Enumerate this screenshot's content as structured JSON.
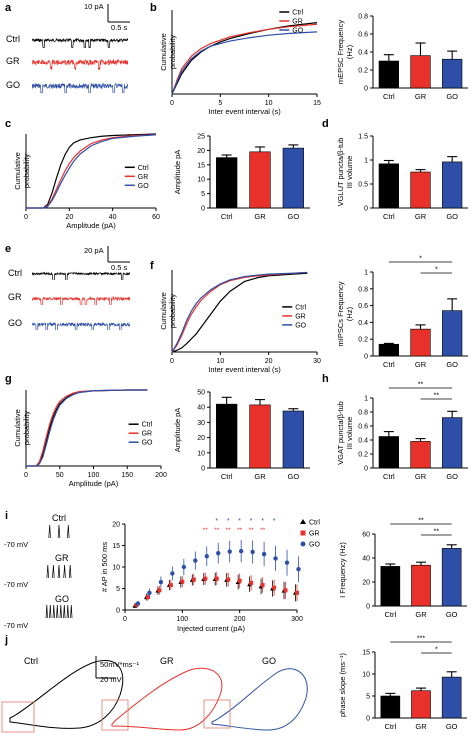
{
  "colors": {
    "ctrl": "#000000",
    "gr": "#e8312b",
    "go": "#2e4fa8"
  },
  "panels": {
    "a": {
      "label": "a",
      "scale_pa": "10 pA",
      "scale_s": "0.5 s",
      "traces": [
        "Ctrl",
        "GR",
        "GO"
      ]
    },
    "e": {
      "label": "e",
      "scale_pa": "20 pA",
      "scale_s": "0.5 s",
      "traces": [
        "Ctrl",
        "GR",
        "GO"
      ]
    },
    "i_traces": {
      "label": "i",
      "rows": [
        {
          "name": "Ctrl",
          "vm": "-70 mV",
          "spikes": 3
        },
        {
          "name": "GR",
          "vm": "-70 mV",
          "spikes": 5
        },
        {
          "name": "GO",
          "vm": "-70 mV",
          "spikes": 8
        }
      ]
    },
    "j": {
      "label": "j",
      "names": [
        "Ctrl",
        "GR",
        "GO"
      ],
      "scale_y": "50mV*ms⁻¹",
      "scale_x": "20 mV"
    }
  },
  "chart_data": [
    {
      "id": "b_cum",
      "label": "b",
      "type": "line",
      "xlabel": "Inter event interval (s)",
      "ylabel": "Cumulative probability",
      "xlim": [
        0,
        15
      ],
      "xticks": [
        0,
        5,
        10,
        15
      ],
      "ylim": [
        0,
        1.0
      ],
      "legend": [
        "Ctrl",
        "GR",
        "GO"
      ],
      "legend_position": "top-right",
      "series": [
        {
          "name": "Ctrl",
          "x": [
            0,
            0.5,
            1,
            2,
            3,
            4,
            5,
            6,
            8,
            10,
            12,
            15
          ],
          "y": [
            0,
            0.12,
            0.24,
            0.4,
            0.5,
            0.57,
            0.62,
            0.66,
            0.72,
            0.77,
            0.81,
            0.85
          ]
        },
        {
          "name": "GR",
          "x": [
            0,
            0.5,
            1,
            2,
            3,
            4,
            5,
            6,
            8,
            10,
            12,
            15
          ],
          "y": [
            0,
            0.16,
            0.3,
            0.45,
            0.54,
            0.6,
            0.64,
            0.68,
            0.73,
            0.77,
            0.8,
            0.83
          ]
        },
        {
          "name": "GO",
          "x": [
            0,
            0.5,
            1,
            2,
            3,
            4,
            5,
            6,
            8,
            10,
            12,
            15
          ],
          "y": [
            0,
            0.14,
            0.27,
            0.42,
            0.51,
            0.57,
            0.6,
            0.63,
            0.67,
            0.7,
            0.72,
            0.74
          ]
        }
      ]
    },
    {
      "id": "b_bar",
      "type": "bar",
      "ylabel": "mEPSC Frequency (Hz)",
      "categories": [
        "Ctrl",
        "GR",
        "GO"
      ],
      "values": [
        0.3,
        0.36,
        0.32
      ],
      "errors": [
        0.07,
        0.14,
        0.09
      ],
      "ylim": [
        0,
        0.8
      ],
      "yticks": [
        0.0,
        0.2,
        0.4,
        0.6,
        0.8
      ]
    },
    {
      "id": "c_cum",
      "label": "c",
      "type": "line",
      "xlabel": "Amplitude (pA)",
      "ylabel": "Cumulative probability",
      "xlim": [
        0,
        60
      ],
      "xticks": [
        0,
        20,
        40,
        60
      ],
      "ylim": [
        0,
        1.0
      ],
      "legend": [
        "Ctrl",
        "GR",
        "GO"
      ],
      "legend_position": "right",
      "series": [
        {
          "name": "Ctrl",
          "x": [
            0,
            8,
            10,
            12,
            14,
            16,
            18,
            20,
            22,
            25,
            30,
            35,
            40,
            50,
            60
          ],
          "y": [
            0,
            0,
            0.05,
            0.2,
            0.4,
            0.58,
            0.72,
            0.82,
            0.88,
            0.92,
            0.95,
            0.97,
            0.98,
            0.99,
            1.0
          ]
        },
        {
          "name": "GR",
          "x": [
            0,
            8,
            10,
            12,
            14,
            16,
            18,
            20,
            22,
            25,
            30,
            35,
            40,
            50,
            60
          ],
          "y": [
            0,
            0,
            0.03,
            0.12,
            0.25,
            0.38,
            0.5,
            0.6,
            0.68,
            0.77,
            0.87,
            0.92,
            0.95,
            0.98,
            0.99
          ]
        },
        {
          "name": "GO",
          "x": [
            0,
            8,
            10,
            12,
            14,
            16,
            18,
            20,
            22,
            25,
            30,
            35,
            40,
            50,
            60
          ],
          "y": [
            0,
            0,
            0.02,
            0.1,
            0.21,
            0.33,
            0.44,
            0.54,
            0.63,
            0.73,
            0.84,
            0.9,
            0.94,
            0.97,
            0.99
          ]
        }
      ]
    },
    {
      "id": "c_bar",
      "type": "bar",
      "ylabel": "Amplitude pA",
      "categories": [
        "Ctrl",
        "GR",
        "GO"
      ],
      "values": [
        17.5,
        19.5,
        20.8
      ],
      "errors": [
        0.9,
        1.7,
        1.1
      ],
      "ylim": [
        0,
        25
      ],
      "yticks": [
        0,
        5,
        10,
        15,
        20,
        25
      ]
    },
    {
      "id": "d_bar",
      "label": "d",
      "type": "bar",
      "ylabel": "VGLUT puncta/β-tub III volume",
      "categories": [
        "Ctrl",
        "GR",
        "GO"
      ],
      "values": [
        0.92,
        0.75,
        0.96
      ],
      "errors": [
        0.07,
        0.05,
        0.11
      ],
      "ylim": [
        0,
        1.5
      ],
      "yticks": [
        0.0,
        0.5,
        1.0,
        1.5
      ]
    },
    {
      "id": "f_cum",
      "label": "f",
      "type": "line",
      "xlabel": "Inter event interval (s)",
      "ylabel": "Cumulative probability",
      "xlim": [
        0,
        30
      ],
      "xticks": [
        0,
        10,
        20,
        30
      ],
      "ylim": [
        0,
        1.0
      ],
      "legend": [
        "Ctrl",
        "GR",
        "GO"
      ],
      "legend_position": "right",
      "series": [
        {
          "name": "Ctrl",
          "x": [
            0,
            1,
            2,
            3,
            4,
            5,
            6,
            8,
            10,
            12,
            15,
            18,
            20,
            25,
            28
          ],
          "y": [
            0,
            0.02,
            0.05,
            0.1,
            0.16,
            0.22,
            0.3,
            0.46,
            0.62,
            0.74,
            0.86,
            0.91,
            0.93,
            0.95,
            0.96
          ]
        },
        {
          "name": "GR",
          "x": [
            0,
            1,
            2,
            3,
            4,
            5,
            6,
            8,
            10,
            12,
            15,
            18,
            20,
            25,
            28
          ],
          "y": [
            0,
            0.08,
            0.2,
            0.34,
            0.46,
            0.55,
            0.63,
            0.74,
            0.82,
            0.87,
            0.91,
            0.93,
            0.94,
            0.96,
            0.97
          ]
        },
        {
          "name": "GO",
          "x": [
            0,
            1,
            2,
            3,
            4,
            5,
            6,
            8,
            10,
            12,
            15,
            18,
            20,
            25,
            28
          ],
          "y": [
            0,
            0.1,
            0.23,
            0.38,
            0.5,
            0.59,
            0.66,
            0.76,
            0.83,
            0.88,
            0.92,
            0.94,
            0.95,
            0.96,
            0.97
          ]
        }
      ]
    },
    {
      "id": "f_bar",
      "type": "bar",
      "ylabel": "mIPSCs Frequency (Hz)",
      "categories": [
        "Ctrl",
        "GR",
        "GO"
      ],
      "values": [
        0.14,
        0.32,
        0.54
      ],
      "errors": [
        0.01,
        0.05,
        0.14
      ],
      "ylim": [
        0,
        1.0
      ],
      "yticks": [
        0.0,
        0.2,
        0.4,
        0.6,
        0.8,
        1.0
      ],
      "significance": [
        {
          "a": 0,
          "b": 2,
          "text": "*"
        },
        {
          "a": 1,
          "b": 2,
          "text": "*"
        }
      ]
    },
    {
      "id": "g_cum",
      "label": "g",
      "type": "line",
      "xlabel": "Amplitude (pA)",
      "ylabel": "Cumulative probability",
      "xlim": [
        0,
        200
      ],
      "xticks": [
        0,
        50,
        100,
        150,
        200
      ],
      "ylim": [
        0,
        1.0
      ],
      "legend": [
        "Ctrl",
        "GR",
        "GO"
      ],
      "legend_position": "right",
      "series": [
        {
          "name": "Ctrl",
          "x": [
            0,
            15,
            20,
            25,
            30,
            35,
            40,
            45,
            50,
            60,
            70,
            80,
            100,
            150,
            180
          ],
          "y": [
            0,
            0,
            0.04,
            0.15,
            0.32,
            0.5,
            0.64,
            0.74,
            0.82,
            0.9,
            0.95,
            0.97,
            0.99,
            1.0,
            1.0
          ]
        },
        {
          "name": "GR",
          "x": [
            0,
            15,
            20,
            25,
            30,
            35,
            40,
            45,
            50,
            60,
            70,
            80,
            100,
            150,
            180
          ],
          "y": [
            0,
            0,
            0.06,
            0.2,
            0.38,
            0.55,
            0.68,
            0.78,
            0.85,
            0.92,
            0.96,
            0.98,
            0.99,
            1.0,
            1.0
          ]
        },
        {
          "name": "GO",
          "x": [
            0,
            15,
            20,
            25,
            30,
            35,
            40,
            45,
            50,
            60,
            70,
            80,
            100,
            150,
            180
          ],
          "y": [
            0,
            0,
            0.03,
            0.12,
            0.28,
            0.45,
            0.6,
            0.71,
            0.8,
            0.89,
            0.94,
            0.97,
            0.99,
            1.0,
            1.0
          ]
        }
      ]
    },
    {
      "id": "g_bar",
      "type": "bar",
      "ylabel": "Amplitude pA",
      "categories": [
        "Ctrl",
        "GR",
        "GO"
      ],
      "values": [
        42,
        41.5,
        37.5
      ],
      "errors": [
        4.5,
        3.5,
        1.5
      ],
      "ylim": [
        0,
        50
      ],
      "yticks": [
        0,
        10,
        20,
        30,
        40,
        50
      ]
    },
    {
      "id": "h_bar",
      "label": "h",
      "type": "bar",
      "ylabel": "VGAT puncta/β-tub III volume",
      "categories": [
        "Ctrl",
        "GR",
        "GO"
      ],
      "values": [
        0.45,
        0.38,
        0.72
      ],
      "errors": [
        0.07,
        0.04,
        0.09
      ],
      "ylim": [
        0,
        1.0
      ],
      "yticks": [
        0.0,
        0.2,
        0.4,
        0.6,
        0.8,
        1.0
      ],
      "significance": [
        {
          "a": 0,
          "b": 2,
          "text": "**"
        },
        {
          "a": 1,
          "b": 2,
          "text": "**"
        }
      ]
    },
    {
      "id": "i_line",
      "type": "line",
      "xlabel": "Injected current (pA)",
      "ylabel": "# AP in 500 ms",
      "xlim": [
        0,
        300
      ],
      "xticks": [
        0,
        100,
        200,
        300
      ],
      "ylim": [
        0,
        20
      ],
      "yticks": [
        0,
        5,
        10,
        15,
        20
      ],
      "legend": [
        "Ctrl",
        "GR",
        "GO"
      ],
      "legend_position": "top-right",
      "series": [
        {
          "name": "Ctrl",
          "x": [
            20,
            40,
            60,
            80,
            100,
            120,
            140,
            160,
            180,
            200,
            220,
            240,
            260,
            280,
            300
          ],
          "y": [
            1,
            3,
            4.5,
            5.8,
            6.5,
            7,
            7.2,
            7.2,
            7,
            6.5,
            6,
            5.5,
            5,
            4.5,
            4
          ],
          "err": [
            0.5,
            0.8,
            1,
            1.2,
            1.3,
            1.3,
            1.4,
            1.5,
            1.6,
            1.7,
            1.8,
            1.8,
            1.9,
            2,
            2
          ]
        },
        {
          "name": "GR",
          "x": [
            20,
            40,
            60,
            80,
            100,
            120,
            140,
            160,
            180,
            200,
            220,
            240,
            260,
            280,
            300
          ],
          "y": [
            1.2,
            3,
            4.6,
            5.8,
            6.6,
            7.1,
            7.3,
            7.3,
            7.1,
            6.8,
            6.3,
            5.8,
            5.2,
            4.6,
            4
          ],
          "err": [
            0.5,
            0.8,
            1,
            1.2,
            1.3,
            1.3,
            1.4,
            1.5,
            1.6,
            1.7,
            1.8,
            1.8,
            1.9,
            2,
            2
          ]
        },
        {
          "name": "GO",
          "x": [
            20,
            40,
            60,
            80,
            100,
            120,
            140,
            160,
            180,
            200,
            220,
            240,
            260,
            280,
            300
          ],
          "y": [
            1.5,
            4,
            6.5,
            8.5,
            10,
            11.5,
            12.5,
            13.2,
            13.6,
            13.7,
            13.5,
            13,
            12,
            11,
            9.5
          ],
          "err": [
            0.6,
            1,
            1.3,
            1.6,
            1.9,
            2.1,
            2.3,
            2.4,
            2.5,
            2.6,
            2.7,
            2.8,
            2.9,
            3,
            3
          ]
        }
      ],
      "stars_blue": {
        "x": [
          160,
          180,
          200,
          220,
          240,
          260
        ],
        "text": "*"
      },
      "stars_red": {
        "x": [
          140,
          160,
          180,
          200,
          220,
          240
        ],
        "text": "**"
      }
    },
    {
      "id": "i_bar",
      "type": "bar",
      "ylabel": "I Frequency (Hz)",
      "categories": [
        "Ctrl",
        "GR",
        "GO"
      ],
      "values": [
        33,
        34,
        48
      ],
      "errors": [
        2,
        2.5,
        3
      ],
      "ylim": [
        0,
        60
      ],
      "yticks": [
        0,
        20,
        40,
        60
      ],
      "significance": [
        {
          "a": 0,
          "b": 2,
          "text": "**"
        },
        {
          "a": 1,
          "b": 2,
          "text": "**"
        }
      ]
    },
    {
      "id": "j_bar",
      "type": "bar",
      "ylabel": "phase slope (ms⁻¹)",
      "categories": [
        "Ctrl",
        "GR",
        "GO"
      ],
      "values": [
        5,
        6.2,
        9.3
      ],
      "errors": [
        0.6,
        0.6,
        1.2
      ],
      "ylim": [
        0,
        15
      ],
      "yticks": [
        0,
        5,
        10,
        15
      ],
      "significance": [
        {
          "a": 0,
          "b": 2,
          "text": "***"
        },
        {
          "a": 1,
          "b": 2,
          "text": "*"
        }
      ]
    }
  ]
}
